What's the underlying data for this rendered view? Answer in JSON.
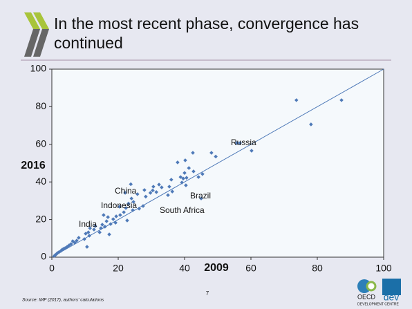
{
  "chart_data": {
    "type": "scatter",
    "title": "In the most recent phase, convergence has continued",
    "x_label": "2009",
    "y_label": "2016",
    "x": [
      73.7,
      87.3,
      78.1,
      60.2,
      55.8,
      56.7,
      48.1,
      49.4,
      40.2,
      37.9,
      42.7,
      40.0,
      38.8,
      40.6,
      39.6,
      45.4,
      44.2,
      40.4,
      39.2,
      35.4,
      36.3,
      32.3,
      33.1,
      30.6,
      31.5,
      29.7,
      27.9,
      28.3,
      25.8,
      23.8,
      22.1,
      24.6,
      24.0,
      27.5,
      26.3,
      24.4,
      23.1,
      22.3,
      20.4,
      21.7,
      19.4,
      20.6,
      22.7,
      18.5,
      17.7,
      16.5,
      15.6,
      16.9,
      15.2,
      16.0,
      14.8,
      13.1,
      12.7,
      14.4,
      11.5,
      11.0,
      10.2,
      11.3,
      17.3,
      19.2,
      10.6,
      9.8,
      8.1,
      7.5,
      6.9,
      6.3,
      5.8,
      5.2,
      4.6,
      4.0,
      3.5,
      3.1,
      2.7,
      2.1,
      1.7,
      1.3,
      1.0,
      0.8,
      45.0,
      35.0,
      41.3,
      42.5,
      36.0,
      30.4
    ],
    "values": [
      83.5,
      83.5,
      70.6,
      56.6,
      60.7,
      60.7,
      55.5,
      53.5,
      51.5,
      50.4,
      45.6,
      44.8,
      42.6,
      42.2,
      41.8,
      44.2,
      42.6,
      38.2,
      39.7,
      37.5,
      34.9,
      38.6,
      37.1,
      37.5,
      34.6,
      34.2,
      35.7,
      32.2,
      33.5,
      38.8,
      34.2,
      29.4,
      31.2,
      27.2,
      25.8,
      25.0,
      28.5,
      26.1,
      26.8,
      23.9,
      21.7,
      22.4,
      19.5,
      20.2,
      17.6,
      19.1,
      22.4,
      21.3,
      17.3,
      16.2,
      15.4,
      16.5,
      14.7,
      13.2,
      15.4,
      13.2,
      12.5,
      11.4,
      12.1,
      18.3,
      5.5,
      9.6,
      10.3,
      8.8,
      7.7,
      8.5,
      7.0,
      6.3,
      5.5,
      4.8,
      4.4,
      4.0,
      3.3,
      2.6,
      2.2,
      1.5,
      1.1,
      0.7,
      31.2,
      33.0,
      47.4,
      55.5,
      41.2,
      35.5
    ],
    "color": "#4f7ab8",
    "annotations": [
      "Russia",
      "China",
      "Brazil",
      "Indonesia",
      "South Africa",
      "India"
    ],
    "xlim": [
      0,
      100
    ],
    "xticks": [
      0,
      20,
      40,
      60,
      80,
      100
    ],
    "ylim": [
      0,
      100
    ],
    "yticks": [
      0,
      20,
      40,
      60,
      80,
      100
    ]
  },
  "footer": {
    "source": "Source: IMF (2017), authors' calculations",
    "page": "7"
  },
  "logo": {
    "name": "OECD",
    "unit": "dev",
    "subtitle": "DEVELOPMENT CENTRE"
  }
}
